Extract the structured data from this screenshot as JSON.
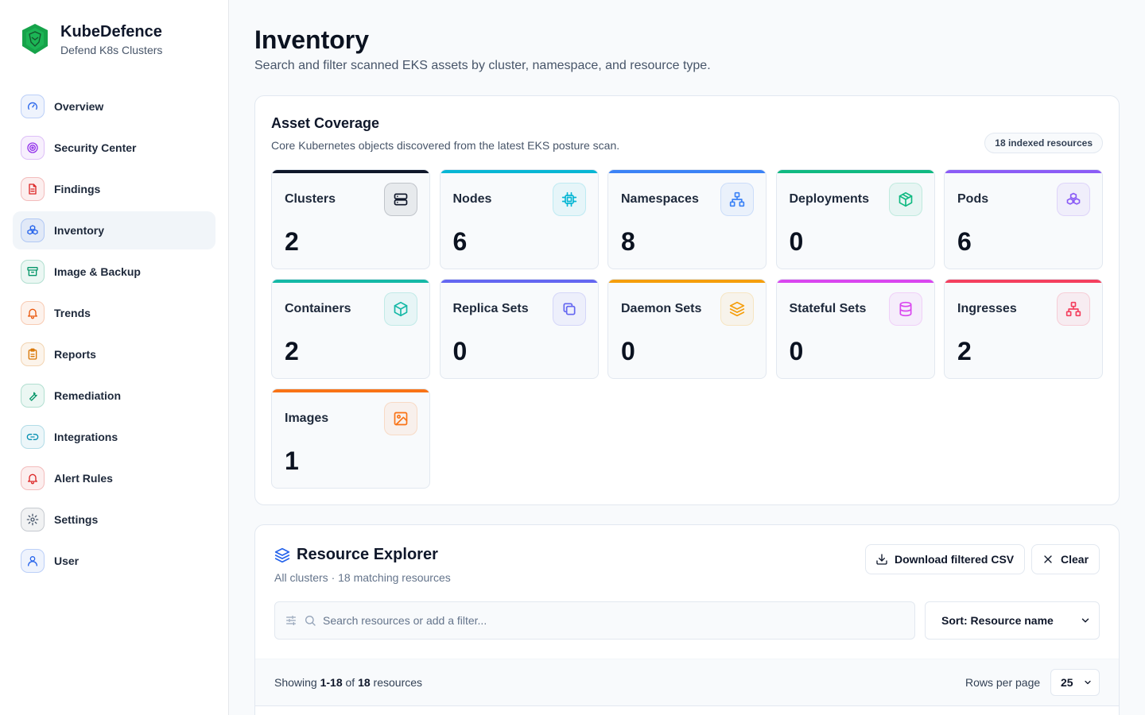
{
  "brand": {
    "name": "KubeDefence",
    "tagline": "Defend K8s Clusters"
  },
  "sidebar": {
    "items": [
      {
        "label": "Overview",
        "icon": "gauge-icon",
        "color": "#2563eb",
        "active": false
      },
      {
        "label": "Security Center",
        "icon": "radar-icon",
        "color": "#9333ea",
        "active": false
      },
      {
        "label": "Findings",
        "icon": "file-text-icon",
        "color": "#dc2626",
        "active": false
      },
      {
        "label": "Inventory",
        "icon": "boxes-icon",
        "color": "#2563eb",
        "active": true
      },
      {
        "label": "Image & Backup",
        "icon": "archive-icon",
        "color": "#059669",
        "active": false
      },
      {
        "label": "Trends",
        "icon": "bell-icon",
        "color": "#ea580c",
        "active": false
      },
      {
        "label": "Reports",
        "icon": "clipboard-icon",
        "color": "#d97706",
        "active": false
      },
      {
        "label": "Remediation",
        "icon": "wrench-icon",
        "color": "#059669",
        "active": false
      },
      {
        "label": "Integrations",
        "icon": "link-icon",
        "color": "#0891b2",
        "active": false
      },
      {
        "label": "Alert Rules",
        "icon": "bell-icon",
        "color": "#dc2626",
        "active": false
      },
      {
        "label": "Settings",
        "icon": "gear-icon",
        "color": "#475569",
        "active": false
      },
      {
        "label": "User",
        "icon": "user-icon",
        "color": "#2563eb",
        "active": false
      }
    ]
  },
  "page": {
    "title": "Inventory",
    "subtitle": "Search and filter scanned EKS assets by cluster, namespace, and resource type."
  },
  "coverage": {
    "title": "Asset Coverage",
    "subtitle": "Core Kubernetes objects discovered from the latest EKS posture scan.",
    "badge": "18 indexed resources",
    "tiles": [
      {
        "label": "Clusters",
        "value": "2",
        "icon": "server-icon",
        "color": "#0f172a"
      },
      {
        "label": "Nodes",
        "value": "6",
        "icon": "cpu-icon",
        "color": "#06b6d4"
      },
      {
        "label": "Namespaces",
        "value": "8",
        "icon": "network-icon",
        "color": "#3b82f6"
      },
      {
        "label": "Deployments",
        "value": "0",
        "icon": "package-icon",
        "color": "#10b981"
      },
      {
        "label": "Pods",
        "value": "6",
        "icon": "boxes-icon",
        "color": "#8b5cf6"
      },
      {
        "label": "Containers",
        "value": "2",
        "icon": "box-icon",
        "color": "#14b8a6"
      },
      {
        "label": "Replica Sets",
        "value": "0",
        "icon": "copy-icon",
        "color": "#6366f1"
      },
      {
        "label": "Daemon Sets",
        "value": "0",
        "icon": "layers-icon",
        "color": "#f59e0b"
      },
      {
        "label": "Stateful Sets",
        "value": "0",
        "icon": "database-icon",
        "color": "#d946ef"
      },
      {
        "label": "Ingresses",
        "value": "2",
        "icon": "network-icon",
        "color": "#f43f5e"
      },
      {
        "label": "Images",
        "value": "1",
        "icon": "image-icon",
        "color": "#f97316"
      }
    ]
  },
  "explorer": {
    "title": "Resource Explorer",
    "subtitle": "All clusters · 18 matching resources",
    "download_label": "Download filtered CSV",
    "clear_label": "Clear",
    "search_placeholder": "Search resources or add a filter...",
    "sort_label": "Sort: Resource name",
    "showing_prefix": "Showing ",
    "showing_range": "1-18",
    "showing_of": " of ",
    "showing_total": "18",
    "showing_suffix": " resources",
    "rows_label": "Rows per page",
    "rows_value": "25"
  }
}
